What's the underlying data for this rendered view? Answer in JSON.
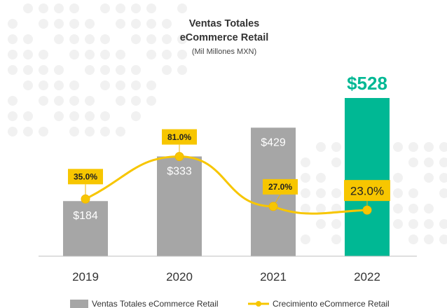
{
  "chart_data": {
    "type": "bar",
    "title": "Ventas Totales",
    "subtitle": "eCommerce Retail",
    "unit": "(Mil Millones MXN)",
    "categories": [
      "2019",
      "2020",
      "2021",
      "2022"
    ],
    "series": [
      {
        "name": "Ventas Totales eCommerce Retail",
        "type": "bar",
        "values": [
          184,
          333,
          429,
          528
        ],
        "labels": [
          "$184",
          "$333",
          "$429",
          "$528"
        ],
        "colors": [
          "#a6a6a6",
          "#a6a6a6",
          "#a6a6a6",
          "#00b894"
        ]
      },
      {
        "name": "Crecimiento eCommerce Retail",
        "type": "line",
        "values": [
          35.0,
          81.0,
          27.0,
          23.0
        ],
        "labels": [
          "35.0%",
          "81.0%",
          "27.0%",
          "23.0%"
        ],
        "color": "#f7c600"
      }
    ],
    "legend_position": "bottom",
    "grid": false
  }
}
